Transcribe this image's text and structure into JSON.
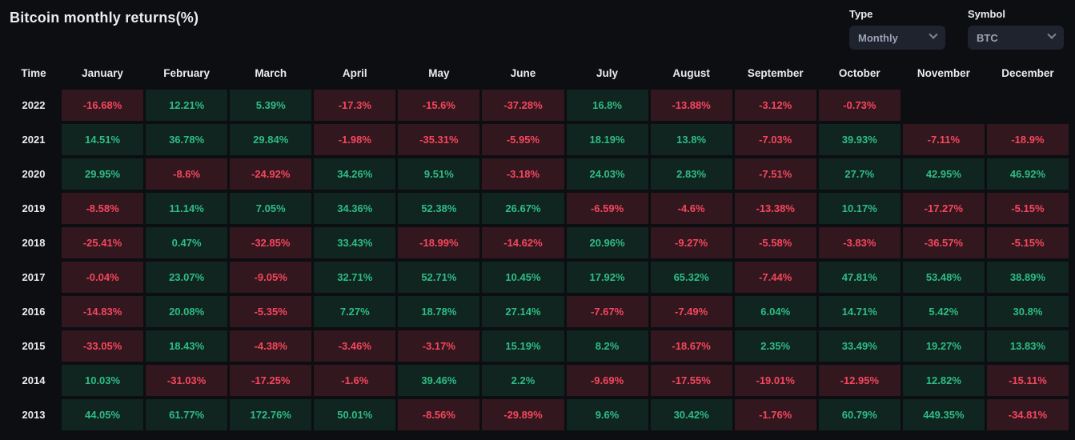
{
  "title": "Bitcoin monthly returns(%)",
  "controls": {
    "type": {
      "label": "Type",
      "value": "Monthly"
    },
    "symbol": {
      "label": "Symbol",
      "value": "BTC"
    }
  },
  "colors": {
    "positive_text": "#2ebd85",
    "negative_text": "#f6465d",
    "background": "#0c0e12",
    "dropdown_bg": "#1e232d"
  },
  "chart_data": {
    "type": "heatmap",
    "title": "Bitcoin monthly returns(%)",
    "time_header": "Time",
    "columns": [
      "January",
      "February",
      "March",
      "April",
      "May",
      "June",
      "July",
      "August",
      "September",
      "October",
      "November",
      "December"
    ],
    "rows": [
      {
        "year": "2022",
        "values": [
          "-16.68%",
          "12.21%",
          "5.39%",
          "-17.3%",
          "-15.6%",
          "-37.28%",
          "16.8%",
          "-13.88%",
          "-3.12%",
          "-0.73%",
          "",
          ""
        ]
      },
      {
        "year": "2021",
        "values": [
          "14.51%",
          "36.78%",
          "29.84%",
          "-1.98%",
          "-35.31%",
          "-5.95%",
          "18.19%",
          "13.8%",
          "-7.03%",
          "39.93%",
          "-7.11%",
          "-18.9%"
        ]
      },
      {
        "year": "2020",
        "values": [
          "29.95%",
          "-8.6%",
          "-24.92%",
          "34.26%",
          "9.51%",
          "-3.18%",
          "24.03%",
          "2.83%",
          "-7.51%",
          "27.7%",
          "42.95%",
          "46.92%"
        ]
      },
      {
        "year": "2019",
        "values": [
          "-8.58%",
          "11.14%",
          "7.05%",
          "34.36%",
          "52.38%",
          "26.67%",
          "-6.59%",
          "-4.6%",
          "-13.38%",
          "10.17%",
          "-17.27%",
          "-5.15%"
        ]
      },
      {
        "year": "2018",
        "values": [
          "-25.41%",
          "0.47%",
          "-32.85%",
          "33.43%",
          "-18.99%",
          "-14.62%",
          "20.96%",
          "-9.27%",
          "-5.58%",
          "-3.83%",
          "-36.57%",
          "-5.15%"
        ]
      },
      {
        "year": "2017",
        "values": [
          "-0.04%",
          "23.07%",
          "-9.05%",
          "32.71%",
          "52.71%",
          "10.45%",
          "17.92%",
          "65.32%",
          "-7.44%",
          "47.81%",
          "53.48%",
          "38.89%"
        ]
      },
      {
        "year": "2016",
        "values": [
          "-14.83%",
          "20.08%",
          "-5.35%",
          "7.27%",
          "18.78%",
          "27.14%",
          "-7.67%",
          "-7.49%",
          "6.04%",
          "14.71%",
          "5.42%",
          "30.8%"
        ]
      },
      {
        "year": "2015",
        "values": [
          "-33.05%",
          "18.43%",
          "-4.38%",
          "-3.46%",
          "-3.17%",
          "15.19%",
          "8.2%",
          "-18.67%",
          "2.35%",
          "33.49%",
          "19.27%",
          "13.83%"
        ]
      },
      {
        "year": "2014",
        "values": [
          "10.03%",
          "-31.03%",
          "-17.25%",
          "-1.6%",
          "39.46%",
          "2.2%",
          "-9.69%",
          "-17.55%",
          "-19.01%",
          "-12.95%",
          "12.82%",
          "-15.11%"
        ]
      },
      {
        "year": "2013",
        "values": [
          "44.05%",
          "61.77%",
          "172.76%",
          "50.01%",
          "-8.56%",
          "-29.89%",
          "9.6%",
          "30.42%",
          "-1.76%",
          "60.79%",
          "449.35%",
          "-34.81%"
        ]
      }
    ]
  }
}
